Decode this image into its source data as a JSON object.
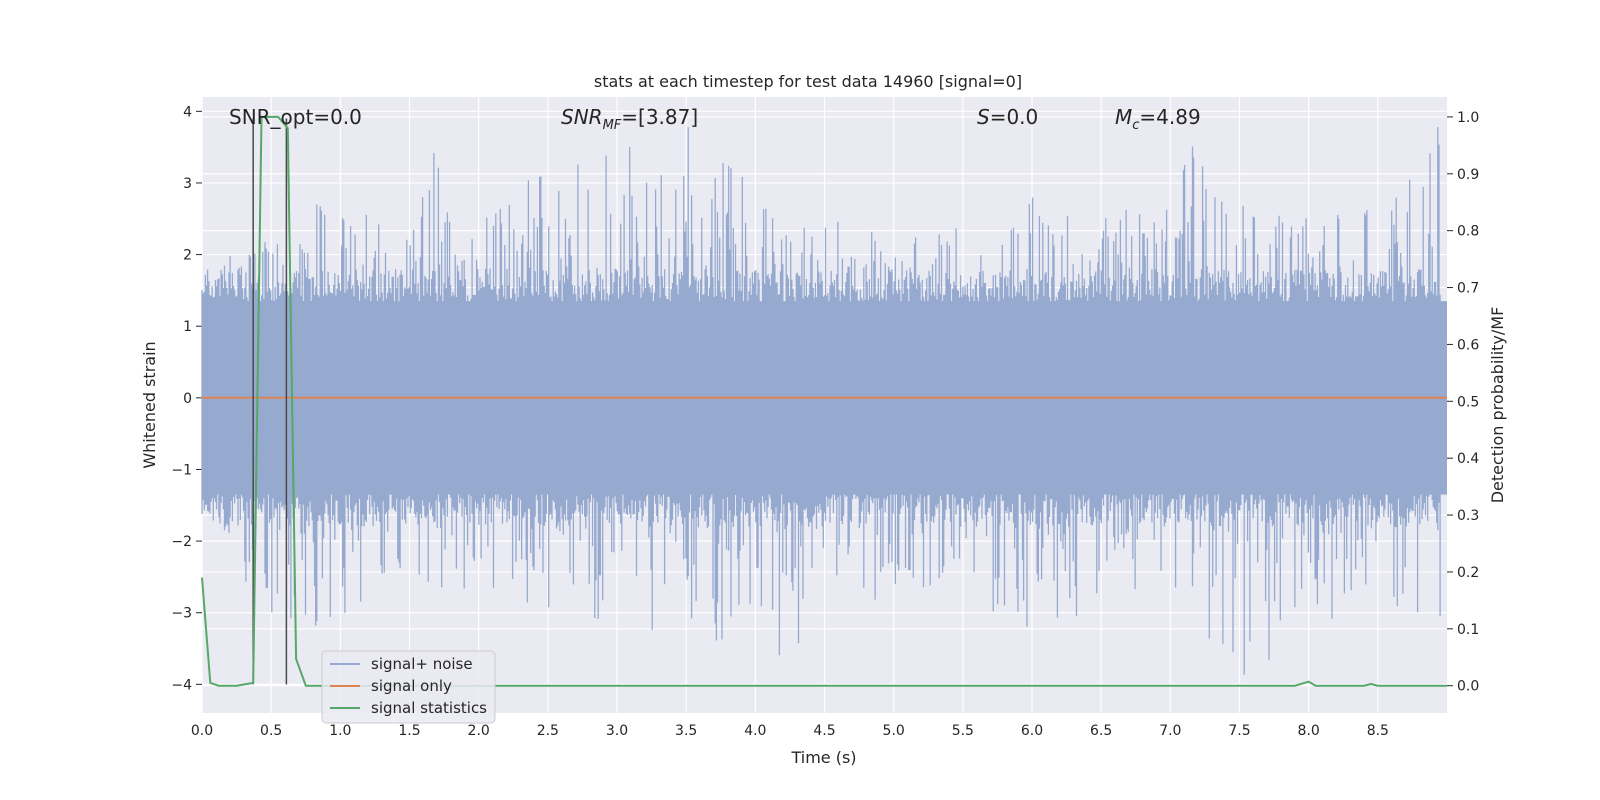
{
  "chart_data": {
    "type": "line",
    "title": "stats at each timestep for test data 14960 [signal=0]",
    "xlabel": "Time (s)",
    "ylabel": "Whitened strain",
    "y2label": "Detection probability/MF",
    "xlim": [
      0.0,
      9.0
    ],
    "ylim": [
      -4.4,
      4.2
    ],
    "y2lim": [
      -0.048,
      1.035
    ],
    "xticks": [
      "0.0",
      "0.5",
      "1.0",
      "1.5",
      "2.0",
      "2.5",
      "3.0",
      "3.5",
      "4.0",
      "4.5",
      "5.0",
      "5.5",
      "6.0",
      "6.5",
      "7.0",
      "7.5",
      "8.0",
      "8.5"
    ],
    "yticks": [
      "4",
      "3",
      "2",
      "1",
      "0",
      "−1",
      "−2",
      "−3",
      "−4"
    ],
    "y2ticks": [
      "1.0",
      "0.9",
      "0.8",
      "0.7",
      "0.6",
      "0.5",
      "0.4",
      "0.3",
      "0.2",
      "0.1",
      "0.0"
    ],
    "grid": true,
    "legend_position": "lower-left",
    "annotations": {
      "snr_opt": "SNR_opt=0.0",
      "snr_mf_main": "SNR",
      "snr_mf_sub": "MF",
      "snr_mf_value": "=[3.87]",
      "s_symbol": "S",
      "s_value": "=0.0",
      "mc_symbol": "M",
      "mc_sub": "c",
      "mc_value": "=4.89"
    },
    "vlines": [
      0.37,
      0.61
    ],
    "series": [
      {
        "name": "signal+ noise",
        "color": "#96aacf",
        "kind": "noise",
        "upper_envelope": [
          [
            0.0,
            1.5
          ],
          [
            0.3,
            2.3
          ],
          [
            0.7,
            2.4
          ],
          [
            0.9,
            3.0
          ],
          [
            1.2,
            2.9
          ],
          [
            1.65,
            3.5
          ],
          [
            2.0,
            2.4
          ],
          [
            2.3,
            3.0
          ],
          [
            2.95,
            3.4
          ],
          [
            3.5,
            3.8
          ],
          [
            3.8,
            3.4
          ],
          [
            4.2,
            2.3
          ],
          [
            4.6,
            2.5
          ],
          [
            5.0,
            2.2
          ],
          [
            5.4,
            2.3
          ],
          [
            5.8,
            3.0
          ],
          [
            6.4,
            2.4
          ],
          [
            6.9,
            2.8
          ],
          [
            7.15,
            3.6
          ],
          [
            7.6,
            2.6
          ],
          [
            8.0,
            2.5
          ],
          [
            8.6,
            2.7
          ],
          [
            8.94,
            3.8
          ]
        ],
        "lower_envelope": [
          [
            0.0,
            -1.6
          ],
          [
            0.35,
            -2.9
          ],
          [
            0.85,
            -3.2
          ],
          [
            1.4,
            -2.6
          ],
          [
            2.0,
            -2.7
          ],
          [
            2.9,
            -3.1
          ],
          [
            3.45,
            -3.4
          ],
          [
            4.2,
            -3.6
          ],
          [
            4.7,
            -2.9
          ],
          [
            5.3,
            -2.6
          ],
          [
            5.8,
            -3.3
          ],
          [
            6.1,
            -3.4
          ],
          [
            6.6,
            -2.6
          ],
          [
            7.0,
            -2.8
          ],
          [
            7.6,
            -4.0
          ],
          [
            8.0,
            -3.0
          ],
          [
            8.4,
            -3.2
          ],
          [
            8.94,
            -3.1
          ]
        ]
      },
      {
        "name": "signal only",
        "color": "#dd8452",
        "x": [
          0.0,
          9.0
        ],
        "y": [
          0.0,
          0.0
        ]
      },
      {
        "name": "signal statistics",
        "color": "#55a868",
        "axis": "right",
        "x": [
          0.0,
          0.06,
          0.12,
          0.25,
          0.37,
          0.43,
          0.5,
          0.55,
          0.62,
          0.68,
          0.75,
          0.9,
          1.5,
          2.3,
          3.0,
          4.0,
          5.0,
          6.0,
          7.0,
          7.9,
          8.0,
          8.05,
          8.4,
          8.45,
          8.5,
          9.0
        ],
        "y": [
          0.19,
          0.005,
          0.0,
          0.0,
          0.005,
          1.0,
          1.0,
          1.0,
          0.98,
          0.047,
          0.0,
          0.0,
          0.0,
          0.0,
          0.0,
          0.0,
          0.0,
          0.0,
          0.0,
          0.0,
          0.007,
          0.0,
          0.0,
          0.003,
          0.0,
          0.0
        ]
      }
    ]
  }
}
